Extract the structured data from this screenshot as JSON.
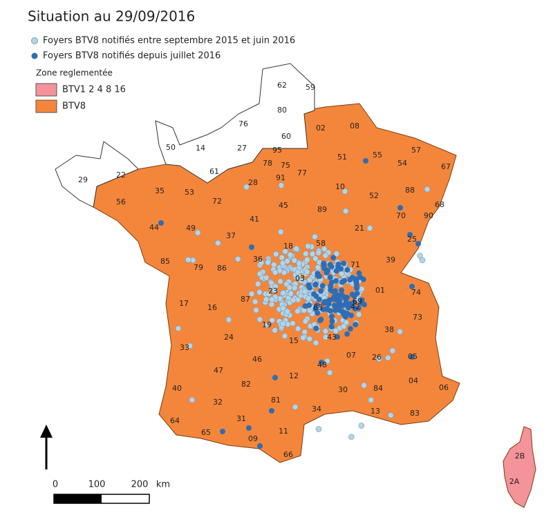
{
  "title": "Situation au 29/09/2016",
  "legend": {
    "points": [
      "Foyers BTV8 notifiés entre septembre 2015 et juin 2016",
      "Foyers BTV8 notifiés depuis juillet 2016"
    ],
    "zone_title": "Zone reglementée",
    "zones": [
      "BTV1 2 4 8 16",
      "BTV8"
    ]
  },
  "departments": [
    "62",
    "59",
    "80",
    "76",
    "60",
    "50",
    "14",
    "27",
    "61",
    "29",
    "22",
    "02",
    "08",
    "55",
    "57",
    "67",
    "54",
    "51",
    "10",
    "52",
    "88",
    "68",
    "70",
    "90",
    "25",
    "39",
    "01",
    "74",
    "73",
    "38",
    "26",
    "05",
    "04",
    "06",
    "83",
    "84",
    "13",
    "30",
    "34",
    "11",
    "66",
    "09",
    "31",
    "65",
    "64",
    "32",
    "40",
    "33",
    "47",
    "82",
    "81",
    "12",
    "48",
    "07",
    "43",
    "42",
    "69",
    "71",
    "21",
    "89",
    "77",
    "91",
    "78",
    "95",
    "75",
    "28",
    "45",
    "41",
    "37",
    "72",
    "53",
    "35",
    "56",
    "44",
    "49",
    "85",
    "79",
    "86",
    "36",
    "18",
    "58",
    "03",
    "23",
    "87",
    "16",
    "17",
    "24",
    "19",
    "15",
    "63",
    "46",
    "2B",
    "2A"
  ],
  "scale": [
    "0",
    "100",
    "200",
    "km"
  ]
}
